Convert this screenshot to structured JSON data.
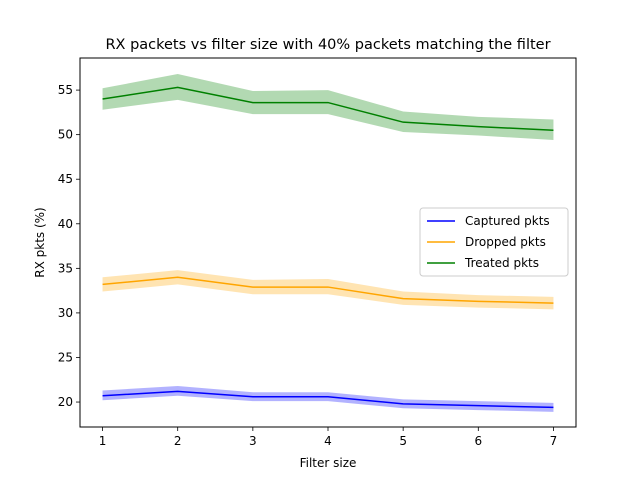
{
  "chart_data": {
    "type": "line",
    "title": "RX packets vs filter size with 40% packets matching the filter",
    "xlabel": "Filter size",
    "ylabel": "RX pkts (%)",
    "x": [
      1,
      2,
      3,
      4,
      5,
      6,
      7
    ],
    "xlim": [
      0.7,
      7.3
    ],
    "ylim": [
      17.2,
      58.6
    ],
    "xticks": [
      "1",
      "2",
      "3",
      "4",
      "5",
      "6",
      "7"
    ],
    "yticks": [
      "20",
      "25",
      "30",
      "35",
      "40",
      "45",
      "50",
      "55"
    ],
    "legend_position": "center-right",
    "series": [
      {
        "name": "Captured pkts",
        "color": "#0000ff",
        "values": [
          20.7,
          21.2,
          20.6,
          20.6,
          19.8,
          19.6,
          19.4
        ],
        "band_low": [
          20.2,
          20.7,
          20.1,
          20.1,
          19.3,
          19.1,
          18.9
        ],
        "band_high": [
          21.3,
          21.8,
          21.1,
          21.1,
          20.3,
          20.1,
          19.9
        ]
      },
      {
        "name": "Dropped pkts",
        "color": "#ffa500",
        "values": [
          33.2,
          34.0,
          32.9,
          32.9,
          31.6,
          31.3,
          31.1
        ],
        "band_low": [
          32.4,
          33.2,
          32.1,
          32.1,
          30.9,
          30.6,
          30.4
        ],
        "band_high": [
          34.0,
          34.8,
          33.7,
          33.8,
          32.4,
          32.0,
          31.8
        ]
      },
      {
        "name": "Treated pkts",
        "color": "#008000",
        "values": [
          54.0,
          55.3,
          53.6,
          53.6,
          51.4,
          50.9,
          50.5
        ],
        "band_low": [
          52.8,
          53.9,
          52.3,
          52.3,
          50.3,
          49.9,
          49.4
        ],
        "band_high": [
          55.2,
          56.8,
          54.9,
          55.0,
          52.6,
          52.0,
          51.7
        ]
      }
    ]
  }
}
